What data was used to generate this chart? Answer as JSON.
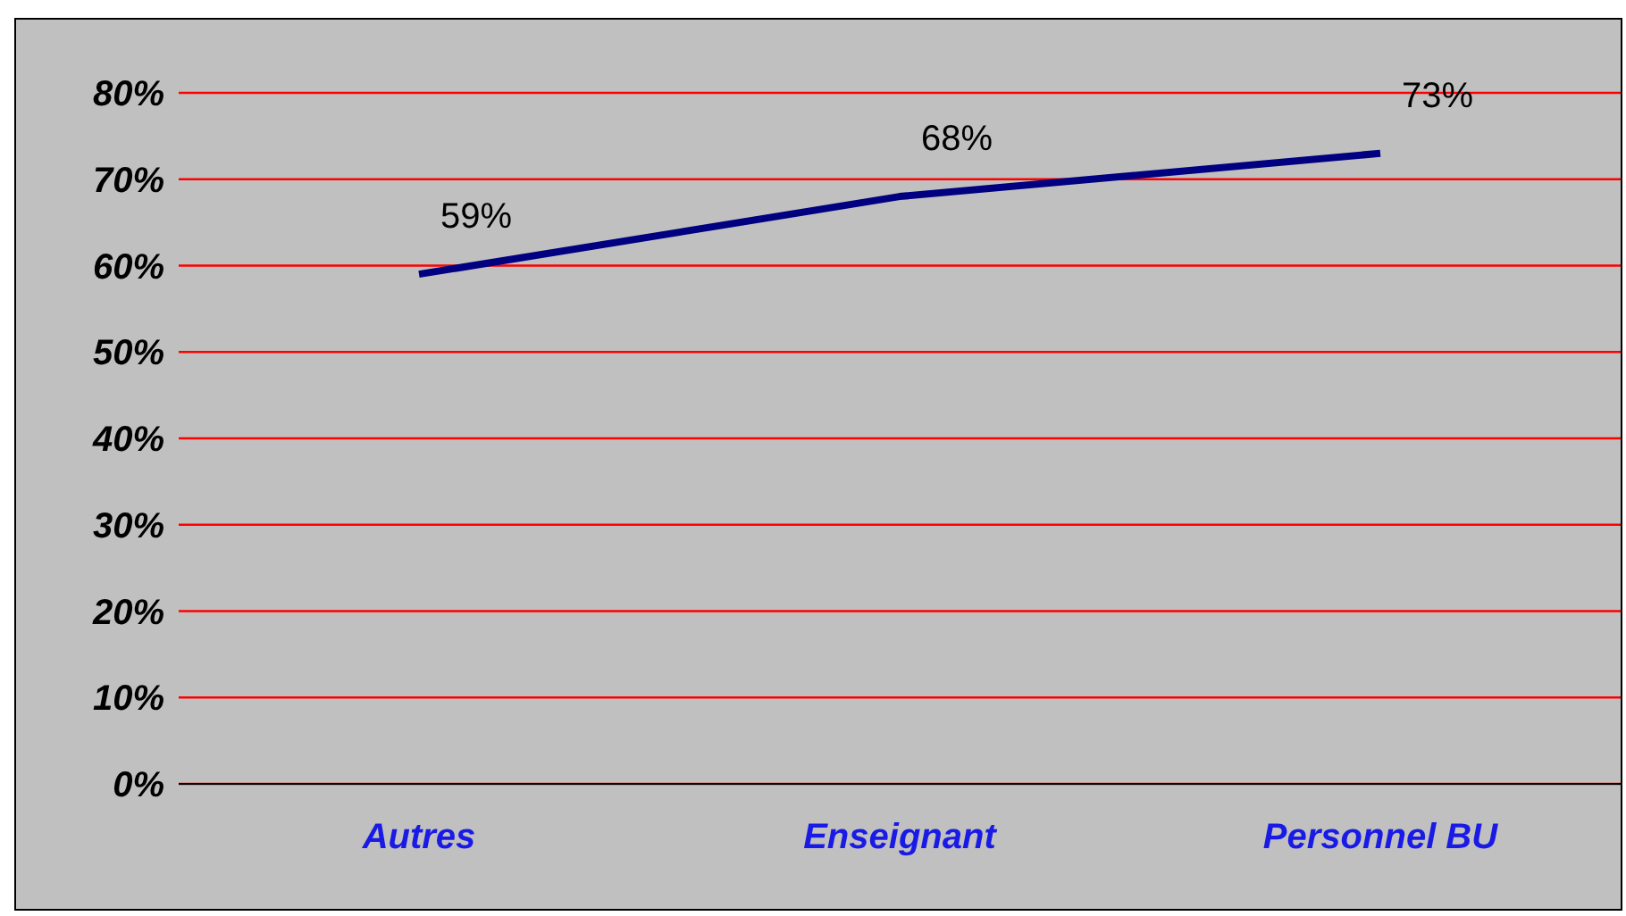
{
  "chart_data": {
    "type": "line",
    "categories": [
      "Autres",
      "Enseignant",
      "Personnel BU"
    ],
    "series": [
      {
        "color": "#000080",
        "values": [
          59,
          68,
          73
        ],
        "value_labels": [
          "59%",
          "68%",
          "73%"
        ]
      }
    ],
    "ylim": [
      0,
      80
    ],
    "yticks": [
      {
        "value": 0,
        "label": "0%"
      },
      {
        "value": 10,
        "label": "10%"
      },
      {
        "value": 20,
        "label": "20%"
      },
      {
        "value": 30,
        "label": "30%"
      },
      {
        "value": 40,
        "label": "40%"
      },
      {
        "value": 50,
        "label": "50%"
      },
      {
        "value": 60,
        "label": "60%"
      },
      {
        "value": 70,
        "label": "70%"
      },
      {
        "value": 80,
        "label": "80%"
      }
    ],
    "grid": "y",
    "marker": "none",
    "line_style": "solid",
    "legend": false
  }
}
